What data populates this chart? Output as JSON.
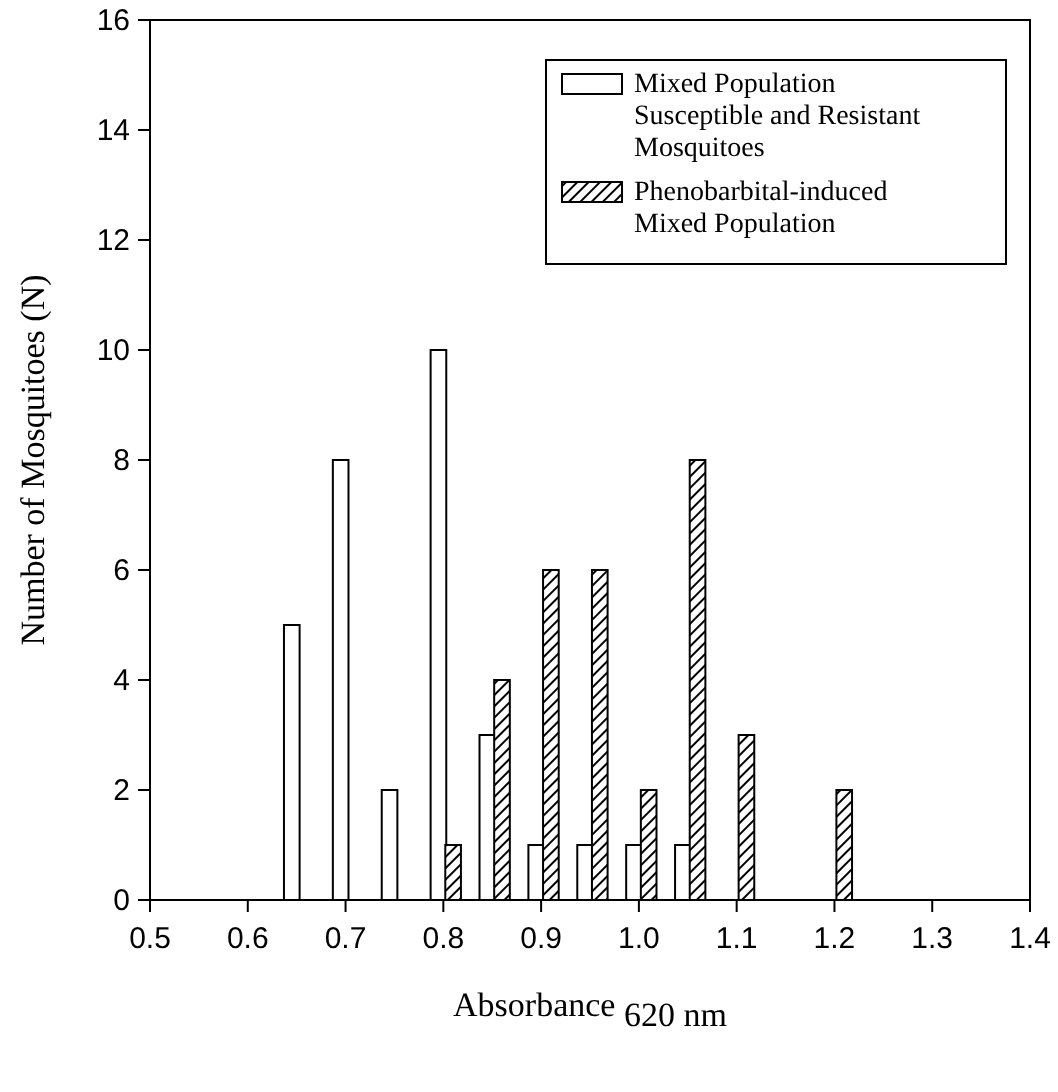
{
  "chart_data": {
    "type": "bar",
    "xlabel": "Absorbance $_{620 nm}$",
    "ylabel": "Number of Mosquitoes (N)",
    "xlim": [
      0.5,
      1.4
    ],
    "xticks": [
      {
        "value": 0.5,
        "label": "0.5"
      },
      {
        "value": 0.6,
        "label": "0.6"
      },
      {
        "value": 0.7,
        "label": "0.7"
      },
      {
        "value": 0.8,
        "label": "0.8"
      },
      {
        "value": 0.9,
        "label": "0.9"
      },
      {
        "value": 1.0,
        "label": "1.0"
      },
      {
        "value": 1.1,
        "label": "1.1"
      },
      {
        "value": 1.2,
        "label": "1.2"
      },
      {
        "value": 1.3,
        "label": "1.3"
      },
      {
        "value": 1.4,
        "label": "1.4"
      }
    ],
    "ylim": [
      0,
      16
    ],
    "yticks": [
      0,
      2,
      4,
      6,
      8,
      10,
      12,
      14,
      16
    ],
    "legend": "top right",
    "grid": false,
    "series": [
      {
        "name": "Mixed Population Susceptible and Resistant Mosquitoes",
        "color": "#ffffff",
        "x": [
          0.645,
          0.695,
          0.745,
          0.795,
          0.845,
          0.895,
          0.945,
          0.995,
          1.045
        ],
        "values": [
          5,
          8,
          2,
          10,
          3,
          1,
          1,
          1,
          1
        ]
      },
      {
        "name": "Phenobarbital-induced Mixed Population",
        "color": "#000000",
        "x": [
          0.81,
          0.86,
          0.91,
          0.96,
          1.01,
          1.06,
          1.11,
          1.21
        ],
        "values": [
          1,
          4,
          6,
          6,
          2,
          8,
          3,
          2
        ]
      }
    ]
  }
}
